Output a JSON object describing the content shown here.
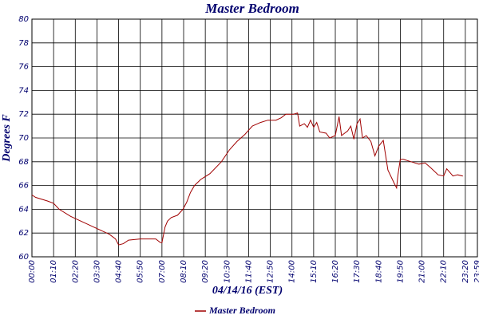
{
  "chart_data": {
    "type": "line",
    "title": "Master Bedroom",
    "xlabel": "04/14/16 (EST)",
    "ylabel": "Degrees F",
    "xlim": [
      0,
      1439
    ],
    "ylim": [
      60,
      80
    ],
    "yticks": [
      60,
      62,
      64,
      66,
      68,
      70,
      72,
      74,
      76,
      78,
      80
    ],
    "xticks": [
      {
        "value": 0,
        "label": "00:00"
      },
      {
        "value": 70,
        "label": "01:10"
      },
      {
        "value": 140,
        "label": "02:20"
      },
      {
        "value": 210,
        "label": "03:30"
      },
      {
        "value": 280,
        "label": "04:40"
      },
      {
        "value": 350,
        "label": "05:50"
      },
      {
        "value": 420,
        "label": "07:00"
      },
      {
        "value": 490,
        "label": "08:10"
      },
      {
        "value": 560,
        "label": "09:20"
      },
      {
        "value": 630,
        "label": "10:30"
      },
      {
        "value": 700,
        "label": "11:40"
      },
      {
        "value": 770,
        "label": "12:50"
      },
      {
        "value": 840,
        "label": "14:00"
      },
      {
        "value": 910,
        "label": "15:10"
      },
      {
        "value": 980,
        "label": "16:20"
      },
      {
        "value": 1050,
        "label": "17:30"
      },
      {
        "value": 1120,
        "label": "18:40"
      },
      {
        "value": 1190,
        "label": "19:50"
      },
      {
        "value": 1260,
        "label": "21:00"
      },
      {
        "value": 1330,
        "label": "22:10"
      },
      {
        "value": 1400,
        "label": "23:20"
      },
      {
        "value": 1439,
        "label": "23:59"
      }
    ],
    "grid": true,
    "legend": "bottom",
    "x": [
      0,
      12,
      50,
      70,
      88,
      125,
      150,
      200,
      250,
      270,
      280,
      295,
      312,
      350,
      400,
      415,
      420,
      430,
      438,
      450,
      470,
      488,
      500,
      512,
      525,
      545,
      575,
      612,
      638,
      662,
      688,
      712,
      738,
      762,
      788,
      805,
      820,
      845,
      858,
      865,
      880,
      890,
      900,
      910,
      920,
      930,
      950,
      962,
      980,
      992,
      1000,
      1020,
      1030,
      1040,
      1050,
      1060,
      1068,
      1080,
      1095,
      1108,
      1120,
      1135,
      1150,
      1170,
      1178,
      1182,
      1190,
      1200,
      1225,
      1250,
      1270,
      1288,
      1312,
      1330,
      1340,
      1360,
      1375,
      1392
    ],
    "series": [
      {
        "name": "Master Bedroom",
        "color": "#a00000",
        "values": [
          65.2,
          65.0,
          64.7,
          64.5,
          64.0,
          63.4,
          63.1,
          62.5,
          61.9,
          61.5,
          61.0,
          61.1,
          61.4,
          61.5,
          61.5,
          61.2,
          61.2,
          62.5,
          63.0,
          63.3,
          63.5,
          64.0,
          64.6,
          65.4,
          66.0,
          66.5,
          67.0,
          68.0,
          69.0,
          69.7,
          70.3,
          71.0,
          71.3,
          71.5,
          71.5,
          71.7,
          72.0,
          72.0,
          72.1,
          71.0,
          71.2,
          70.9,
          71.5,
          70.9,
          71.3,
          70.5,
          70.4,
          70.0,
          70.2,
          71.8,
          70.2,
          70.6,
          71.0,
          69.9,
          71.2,
          71.6,
          70.0,
          70.2,
          69.7,
          68.5,
          69.3,
          69.8,
          67.3,
          66.2,
          65.8,
          66.8,
          68.2,
          68.2,
          68.0,
          67.8,
          67.9,
          67.5,
          66.9,
          66.8,
          67.4,
          66.8,
          66.9,
          66.8
        ]
      }
    ]
  }
}
